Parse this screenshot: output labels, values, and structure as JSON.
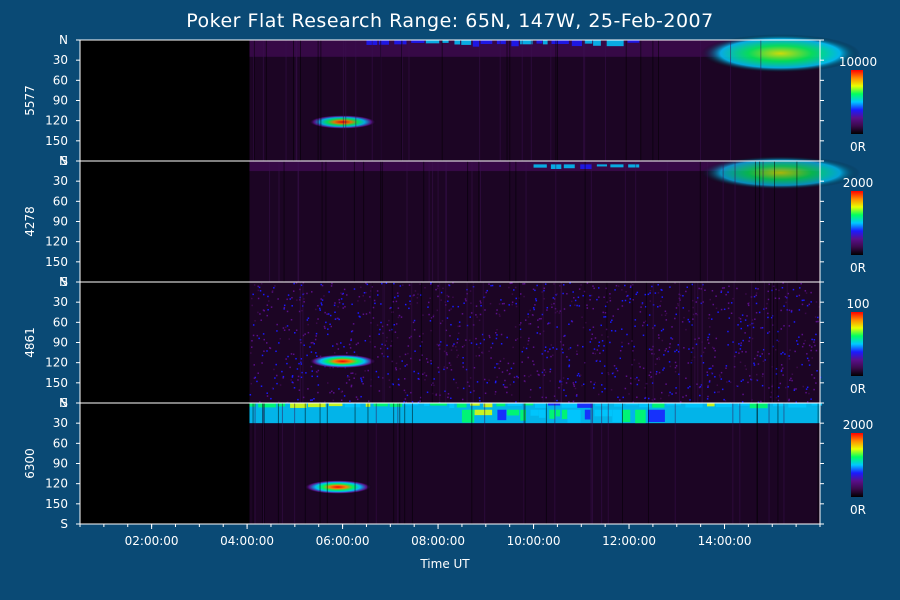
{
  "chart_data": {
    "type": "heatmap",
    "title": "Poker Flat Research Range: 65N, 147W, 25-Feb-2007",
    "xlabel": "Time UT",
    "x_ticks": [
      "02:00:00",
      "04:00:00",
      "06:00:00",
      "08:00:00",
      "10:00:00",
      "12:00:00",
      "14:00:00"
    ],
    "x_range_hours": [
      0.5,
      16.0
    ],
    "data_start_hour": 4.05,
    "y_ticks": [
      "N",
      "30",
      "60",
      "90",
      "120",
      "150",
      "S"
    ],
    "y_range_deg": [
      0,
      180
    ],
    "panels": [
      {
        "ylabel": "5577",
        "cbar_max": "10000",
        "cbar_min": "0R",
        "features": [
          {
            "kind": "north_band",
            "t_start": 4.05,
            "t_end": 16.0,
            "deg_start": 0,
            "deg_end": 25,
            "level": 0.15
          },
          {
            "kind": "north_arcs",
            "t_start": 6.5,
            "t_end": 12.0,
            "deg_start": 0,
            "deg_end": 10,
            "level": 0.5
          },
          {
            "kind": "blob",
            "t": 6.0,
            "deg": 122,
            "level": 0.85
          },
          {
            "kind": "north_glow",
            "t_start": 13.5,
            "t_end": 16.0,
            "deg_start": 0,
            "deg_end": 40,
            "level": 0.55
          }
        ]
      },
      {
        "ylabel": "4278",
        "cbar_max": "2000",
        "cbar_min": "0R",
        "features": [
          {
            "kind": "north_band",
            "t_start": 4.05,
            "t_end": 16.0,
            "deg_start": 0,
            "deg_end": 15,
            "level": 0.1
          },
          {
            "kind": "north_arcs",
            "t_start": 10.0,
            "t_end": 12.0,
            "deg_start": 5,
            "deg_end": 12,
            "level": 0.45
          },
          {
            "kind": "north_glow",
            "t_start": 13.5,
            "t_end": 16.0,
            "deg_start": 0,
            "deg_end": 35,
            "level": 0.4
          }
        ]
      },
      {
        "ylabel": "4861",
        "cbar_max": "100",
        "cbar_min": "0R",
        "features": [
          {
            "kind": "noise",
            "t_start": 4.05,
            "t_end": 16.0,
            "level": 0.25
          },
          {
            "kind": "blob",
            "t": 6.0,
            "deg": 118,
            "level": 0.95
          }
        ]
      },
      {
        "ylabel": "6300",
        "cbar_max": "2000",
        "cbar_min": "0R",
        "features": [
          {
            "kind": "north_band",
            "t_start": 4.05,
            "t_end": 16.0,
            "deg_start": 0,
            "deg_end": 30,
            "level": 0.45
          },
          {
            "kind": "north_arcs",
            "t_start": 4.05,
            "t_end": 16.0,
            "deg_start": 0,
            "deg_end": 8,
            "level": 0.7
          },
          {
            "kind": "north_arcs",
            "t_start": 8.5,
            "t_end": 12.5,
            "deg_start": 10,
            "deg_end": 30,
            "level": 0.65
          },
          {
            "kind": "blob",
            "t": 5.9,
            "deg": 125,
            "level": 0.95
          }
        ]
      }
    ],
    "colormap": [
      "#000000",
      "#3a0a4a",
      "#5a0f8a",
      "#1a1aff",
      "#00c8ff",
      "#00ff60",
      "#e8ff00",
      "#ff8c00",
      "#ff0000"
    ]
  }
}
